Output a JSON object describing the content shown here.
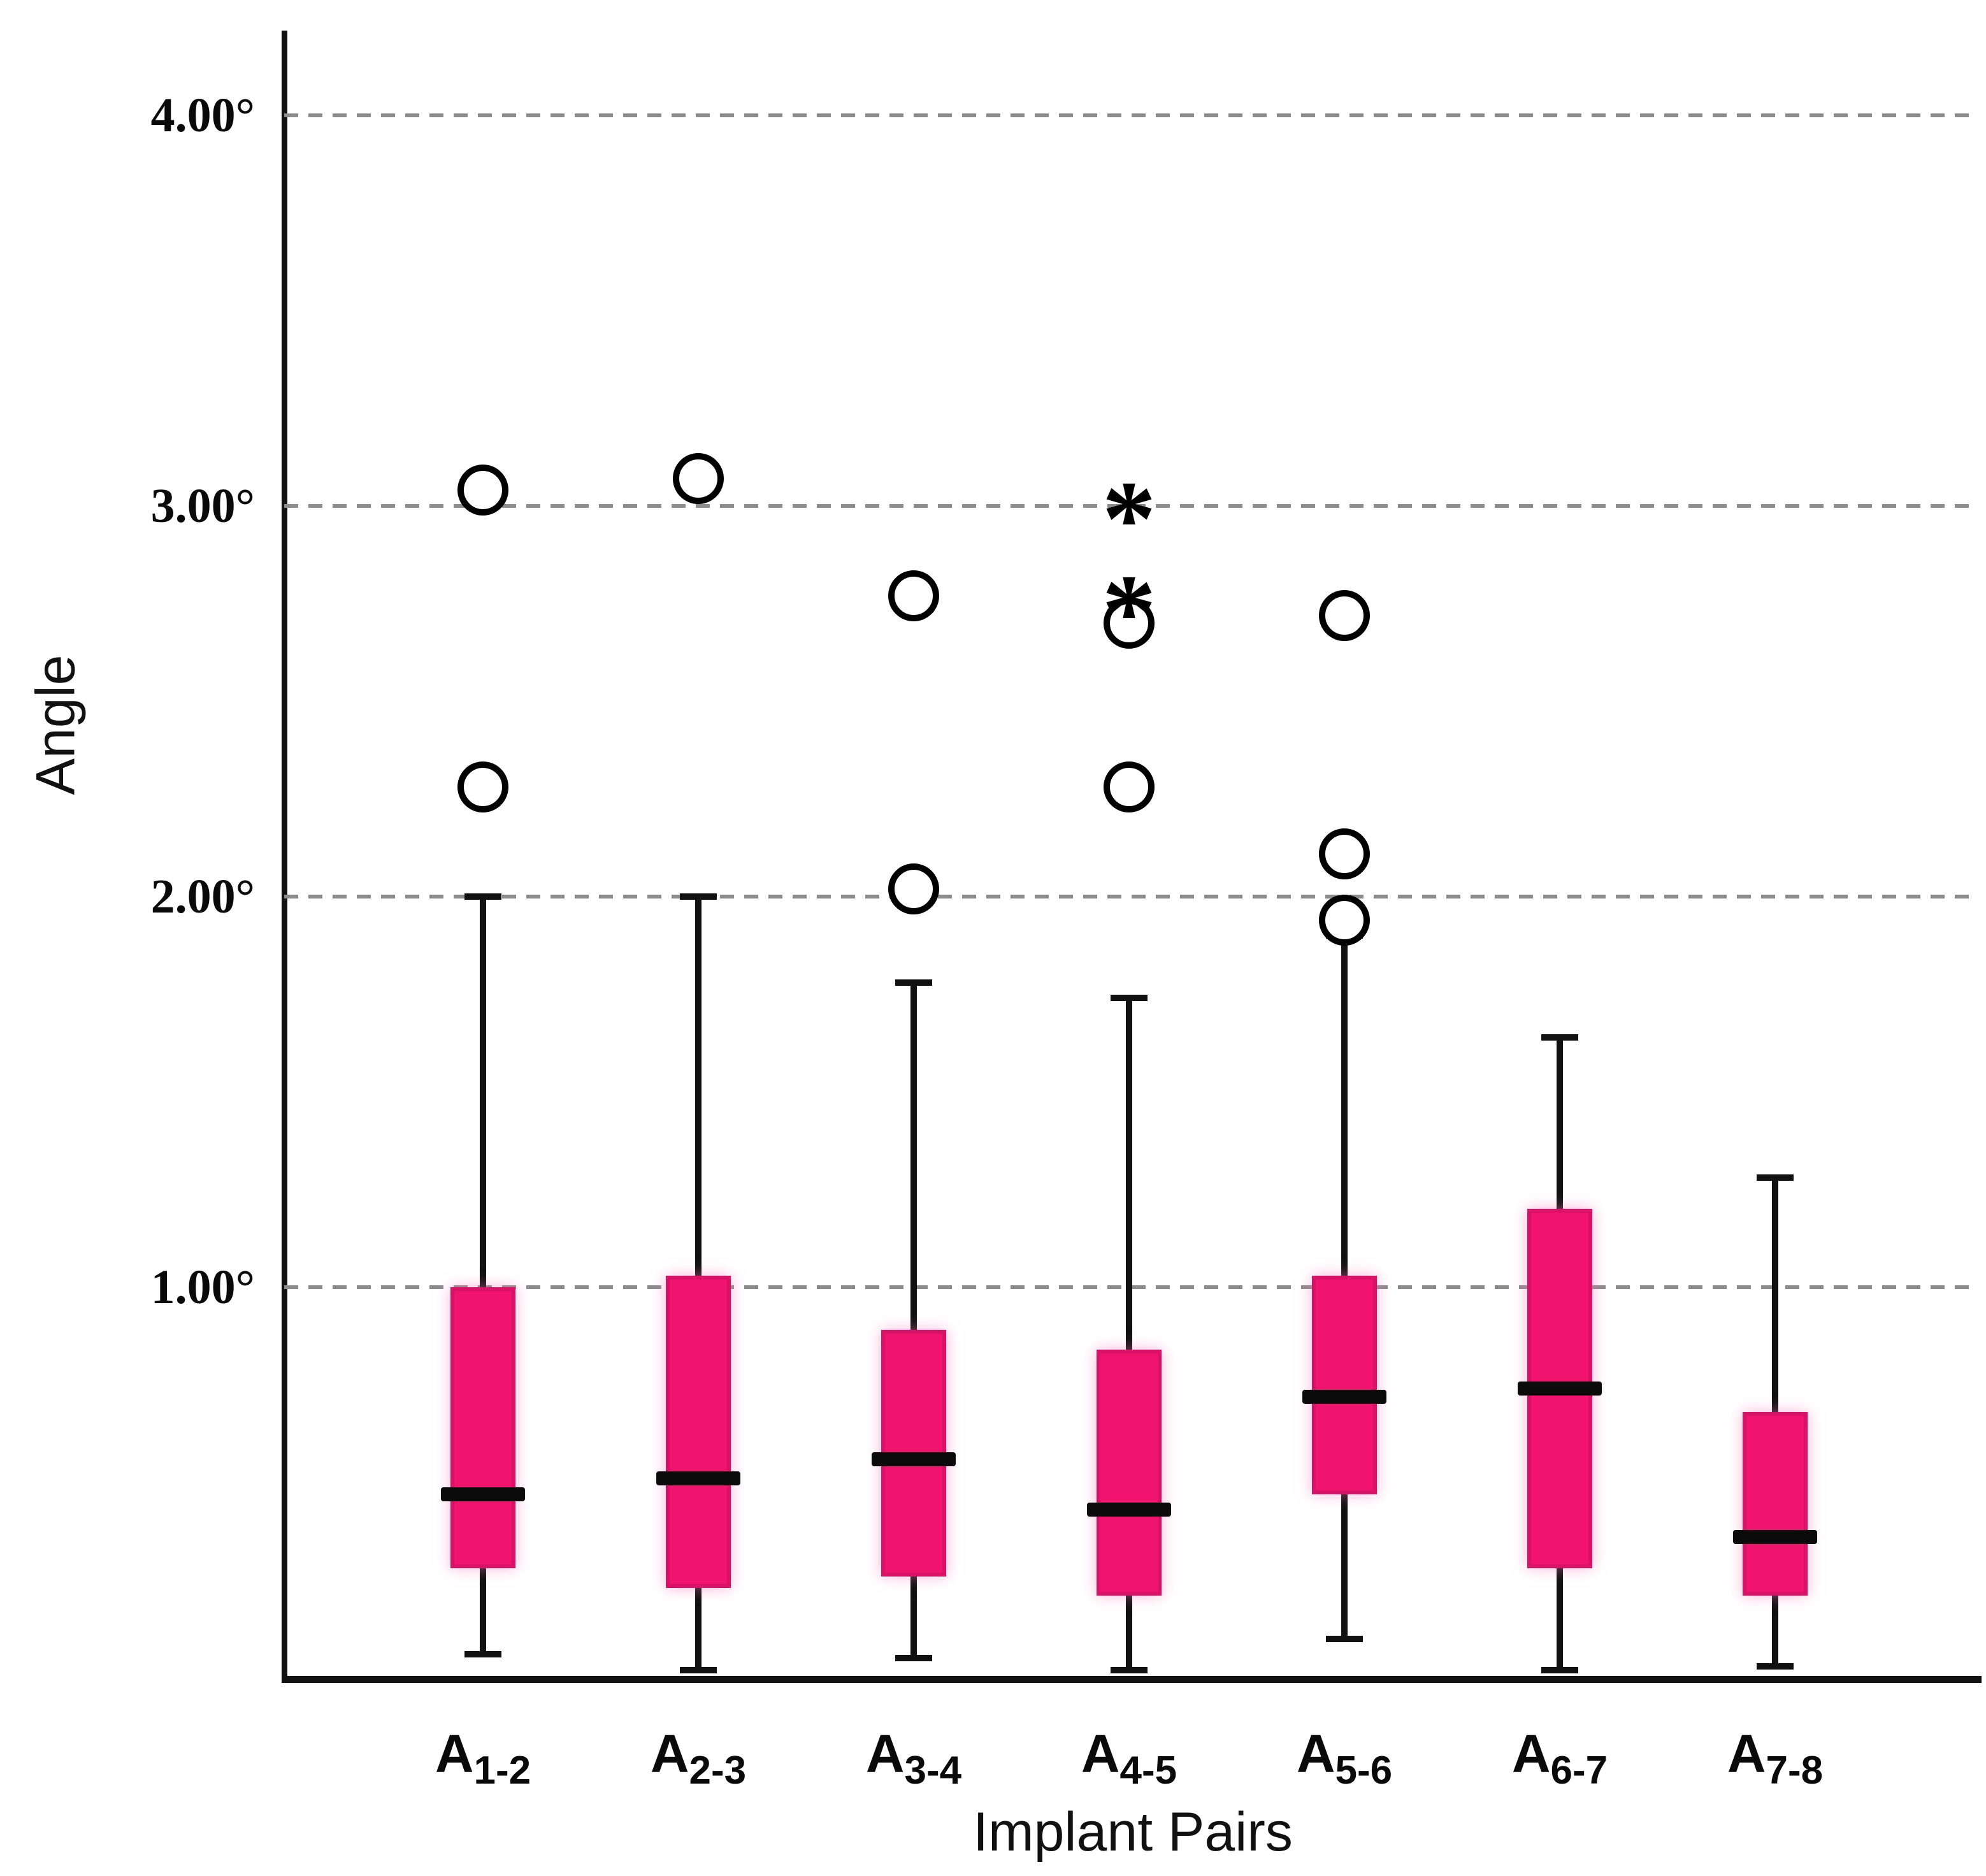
{
  "chart_data": {
    "type": "box",
    "title": "",
    "xlabel": "Implant Pairs",
    "ylabel": "Angle",
    "ylim": [
      0,
      4.3
    ],
    "grid": "horizontal dashed lines at each y tick, legend none",
    "yticks": [
      {
        "value": 1,
        "label": "1.00°"
      },
      {
        "value": 2,
        "label": "2.00°"
      },
      {
        "value": 3,
        "label": "3.00°"
      },
      {
        "value": 4,
        "label": "4.00°"
      }
    ],
    "categories": [
      {
        "base": "A",
        "sub": "1-2"
      },
      {
        "base": "A",
        "sub": "2-3"
      },
      {
        "base": "A",
        "sub": "3-4"
      },
      {
        "base": "A",
        "sub": "4-5"
      },
      {
        "base": "A",
        "sub": "5-6"
      },
      {
        "base": "A",
        "sub": "6-7"
      },
      {
        "base": "A",
        "sub": "7-8"
      }
    ],
    "series": [
      {
        "name": "A1-2",
        "whisker_low": 0.06,
        "q1": 0.28,
        "median": 0.47,
        "q3": 1.0,
        "whisker_high": 2.0,
        "outliers": [
          2.28,
          3.04
        ],
        "extremes": []
      },
      {
        "name": "A2-3",
        "whisker_low": 0.02,
        "q1": 0.23,
        "median": 0.51,
        "q3": 1.03,
        "whisker_high": 2.0,
        "outliers": [
          3.07
        ],
        "extremes": []
      },
      {
        "name": "A3-4",
        "whisker_low": 0.05,
        "q1": 0.26,
        "median": 0.56,
        "q3": 0.89,
        "whisker_high": 1.78,
        "outliers": [
          2.02,
          2.77
        ],
        "extremes": []
      },
      {
        "name": "A4-5",
        "whisker_low": 0.02,
        "q1": 0.21,
        "median": 0.43,
        "q3": 0.84,
        "whisker_high": 1.74,
        "outliers": [
          2.28,
          2.7
        ],
        "extremes": [
          2.81,
          3.05
        ]
      },
      {
        "name": "A5-6",
        "whisker_low": 0.1,
        "q1": 0.47,
        "median": 0.72,
        "q3": 1.03,
        "whisker_high": 1.9,
        "outliers": [
          1.94,
          2.11,
          2.72
        ],
        "extremes": []
      },
      {
        "name": "A6-7",
        "whisker_low": 0.02,
        "q1": 0.28,
        "median": 0.74,
        "q3": 1.2,
        "whisker_high": 1.64,
        "outliers": [],
        "extremes": []
      },
      {
        "name": "A7-8",
        "whisker_low": 0.03,
        "q1": 0.21,
        "median": 0.36,
        "q3": 0.68,
        "whisker_high": 1.28,
        "outliers": [],
        "extremes": []
      }
    ],
    "colors": {
      "box_fill": "#F0146E",
      "box_border": "#D81266",
      "median": "#0B0B0B",
      "whisker": "#111111",
      "gridline": "#8C8C8C",
      "axis": "#111111",
      "outlier_stroke": "#000000",
      "background": "#FFFFFF"
    }
  }
}
